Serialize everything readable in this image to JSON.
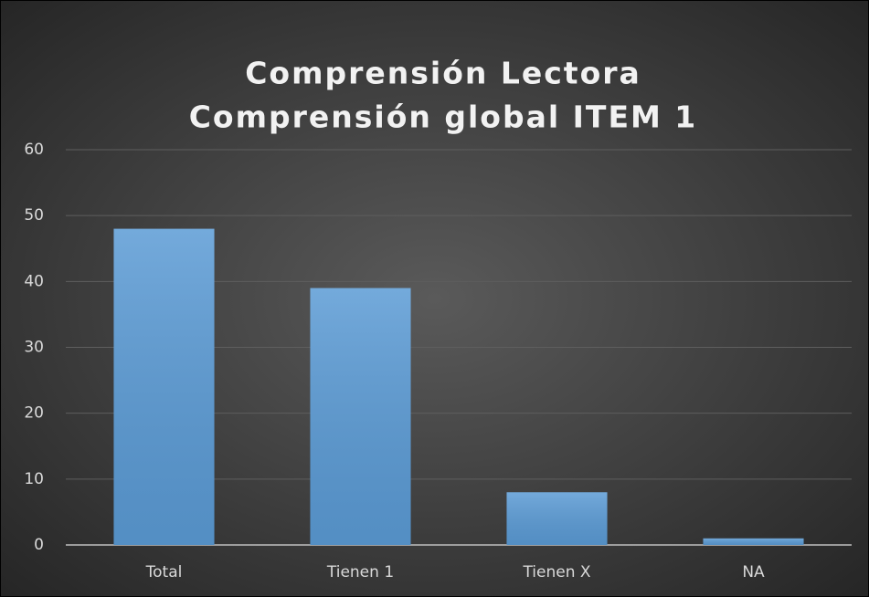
{
  "chart_data": {
    "type": "bar",
    "title": [
      "Comprensión Lectora",
      "Comprensión global ITEM 1"
    ],
    "categories": [
      "Total",
      "Tienen 1",
      "Tienen X",
      "NA"
    ],
    "values": [
      48,
      39,
      8,
      1
    ],
    "color": "#5b9bd5",
    "ylim": [
      0,
      60
    ],
    "yticks": [
      0,
      10,
      20,
      30,
      40,
      50,
      60
    ],
    "grid": true
  }
}
